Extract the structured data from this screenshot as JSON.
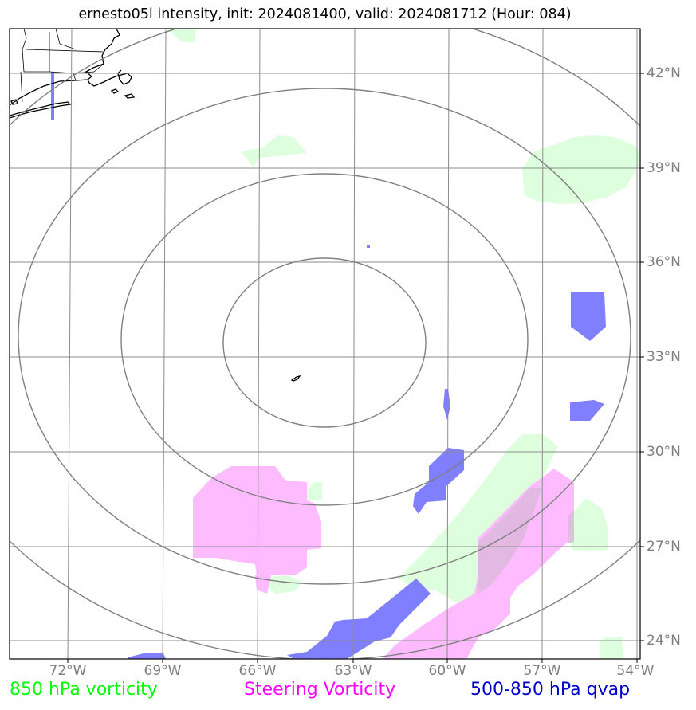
{
  "title": "ernesto05l intensity, init: 2024081400, valid: 2024081712 (Hour: 084)",
  "lon_labels": [
    "72°W",
    "69°W",
    "66°W",
    "63°W",
    "60°W",
    "57°W",
    "54°W"
  ],
  "lat_labels": [
    "42°N",
    "39°N",
    "36°N",
    "33°N",
    "30°N",
    "27°N",
    "24°N"
  ],
  "legend": {
    "vorticity_850": {
      "label": "850 hPa vorticity",
      "color": "#00ff00"
    },
    "steering": {
      "label": "Steering Vorticity",
      "color": "#ff00ff"
    },
    "qvap": {
      "label": "500-850 hPa qvap",
      "color": "#0000cc"
    }
  },
  "colors": {
    "grid": "#8c8c8c",
    "range_ring": "#808080",
    "vorticity_fill": "#ddffdd",
    "steering_fill": "#ffbbff",
    "qvap_fill": "#7f7fff",
    "coast": "#000000"
  }
}
